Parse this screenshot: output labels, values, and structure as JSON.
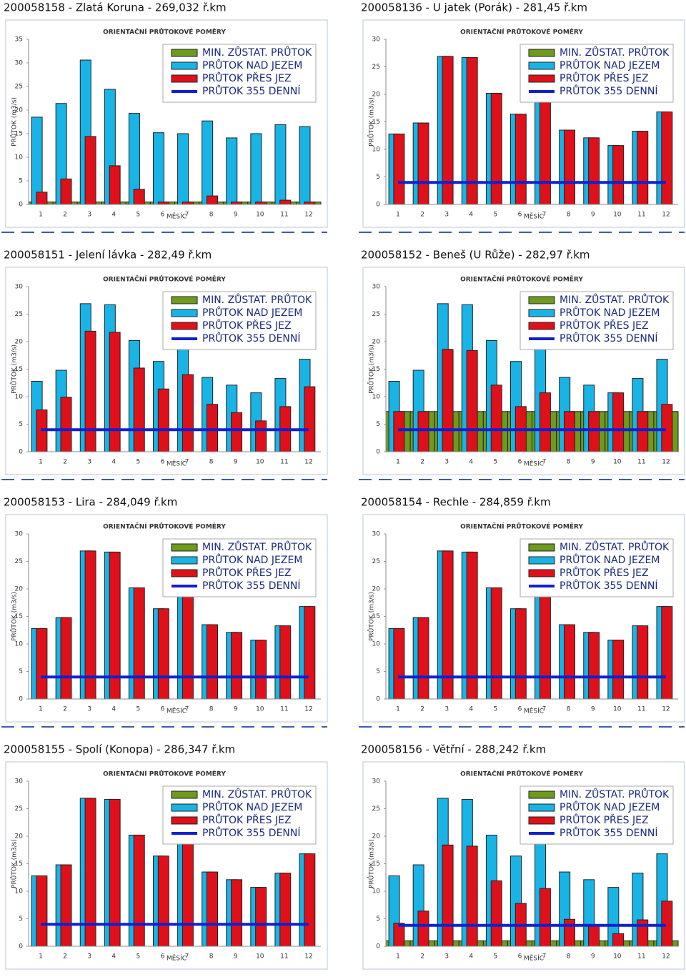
{
  "chart_data": [
    {
      "type": "bar",
      "title": "200058158 - Zlatá Koruna - 269,032 ř.km",
      "subtitle": "ORIENTAČNÍ PRŮTOKOVÉ POMĚRY",
      "y_label": "PRŮTOK (m3/s)",
      "x_label": "MĚSÍC",
      "categories": [
        1,
        2,
        3,
        4,
        5,
        6,
        7,
        8,
        9,
        10,
        11,
        12
      ],
      "ylim": [
        0,
        35
      ],
      "yticks": [
        0,
        5,
        10,
        15,
        20,
        25,
        30,
        35
      ],
      "series": [
        {
          "name": "MIN. ZŮSTAT. PRŮTOK",
          "color": "#6e9a1e",
          "values": [
            0.5,
            0.5,
            0.5,
            0.5,
            0.5,
            0.5,
            0.5,
            0.5,
            0.5,
            0.5,
            0.5,
            0.5
          ]
        },
        {
          "name": "PRŮTOK NAD JEZEM",
          "color": "#19b4e6",
          "values": [
            18.5,
            21.4,
            30.6,
            24.4,
            19.3,
            15.2,
            15.0,
            17.7,
            14.1,
            15.0,
            16.9,
            16.5
          ]
        },
        {
          "name": "PRŮTOK PŘES JEZ",
          "color": "#e0101a",
          "values": [
            2.6,
            5.4,
            14.4,
            8.2,
            3.2,
            0.5,
            0.5,
            1.8,
            0.5,
            0.5,
            0.9,
            0.5
          ]
        },
        {
          "name": "PRŮTOK 355 DENNÍ",
          "color": "#1020d0",
          "type": "line",
          "values": [
            null,
            null,
            null,
            null,
            null,
            null,
            null,
            null,
            null,
            null,
            null,
            null
          ]
        }
      ]
    },
    {
      "type": "bar",
      "title": "200058136 - U jatek (Porák) - 281,45 ř.km",
      "subtitle": "ORIENTAČNÍ PRŮTOKOVÉ POMĚRY",
      "y_label": "PRŮTOK (m3/s)",
      "x_label": "MĚSÍC",
      "categories": [
        1,
        2,
        3,
        4,
        5,
        6,
        7,
        8,
        9,
        10,
        11,
        12
      ],
      "ylim": [
        0,
        30
      ],
      "yticks": [
        0,
        5,
        10,
        15,
        20,
        25,
        30
      ],
      "series": [
        {
          "name": "MIN. ZŮSTAT. PRŮTOK",
          "color": "#6e9a1e",
          "values": [
            null,
            null,
            null,
            null,
            null,
            null,
            null,
            null,
            null,
            null,
            null,
            null
          ]
        },
        {
          "name": "PRŮTOK NAD JEZEM",
          "color": "#19b4e6",
          "values": [
            12.8,
            14.8,
            26.9,
            26.7,
            20.2,
            16.4,
            21.0,
            13.5,
            12.1,
            10.7,
            13.3,
            16.8
          ]
        },
        {
          "name": "PRŮTOK PŘES JEZ",
          "color": "#e0101a",
          "values": [
            12.8,
            14.8,
            26.9,
            26.7,
            20.2,
            16.4,
            21.0,
            13.5,
            12.1,
            10.7,
            13.3,
            16.8
          ]
        },
        {
          "name": "PRŮTOK 355 DENNÍ",
          "color": "#1020d0",
          "type": "line",
          "values": [
            4,
            4,
            4,
            4,
            4,
            4,
            4,
            4,
            4,
            4,
            4,
            4
          ]
        }
      ]
    },
    {
      "type": "bar",
      "title": "200058151 - Jelení lávka - 282,49 ř.km",
      "subtitle": "ORIENTAČNÍ PRŮTOKOVÉ POMĚRY",
      "y_label": "PRŮTOK (m3/s)",
      "x_label": "MĚSÍC",
      "categories": [
        1,
        2,
        3,
        4,
        5,
        6,
        7,
        8,
        9,
        10,
        11,
        12
      ],
      "ylim": [
        0,
        30
      ],
      "yticks": [
        0,
        5,
        10,
        15,
        20,
        25,
        30
      ],
      "series": [
        {
          "name": "MIN. ZŮSTAT. PRŮTOK",
          "color": "#6e9a1e",
          "values": [
            null,
            null,
            null,
            null,
            null,
            null,
            null,
            null,
            null,
            null,
            null,
            null
          ]
        },
        {
          "name": "PRŮTOK NAD JEZEM",
          "color": "#19b4e6",
          "values": [
            12.8,
            14.8,
            26.9,
            26.7,
            20.2,
            16.4,
            21.0,
            13.5,
            12.1,
            10.7,
            13.3,
            16.8
          ]
        },
        {
          "name": "PRŮTOK PŘES JEZ",
          "color": "#e0101a",
          "values": [
            7.6,
            9.9,
            21.9,
            21.7,
            15.2,
            11.4,
            14.0,
            8.6,
            7.1,
            5.6,
            8.2,
            11.8
          ]
        },
        {
          "name": "PRŮTOK 355 DENNÍ",
          "color": "#1020d0",
          "type": "line",
          "values": [
            4,
            4,
            4,
            4,
            4,
            4,
            4,
            4,
            4,
            4,
            4,
            4
          ]
        }
      ]
    },
    {
      "type": "bar",
      "title": "200058152 - Beneš (U Růže) - 282,97 ř.km",
      "subtitle": "ORIENTAČNÍ PRŮTOKOVÉ POMĚRY",
      "y_label": "PRŮTOK (m3/s)",
      "x_label": "MĚSÍC",
      "categories": [
        1,
        2,
        3,
        4,
        5,
        6,
        7,
        8,
        9,
        10,
        11,
        12
      ],
      "ylim": [
        0,
        30
      ],
      "yticks": [
        0,
        5,
        10,
        15,
        20,
        25,
        30
      ],
      "series": [
        {
          "name": "MIN. ZŮSTAT. PRŮTOK",
          "color": "#6e9a1e",
          "values": [
            7.3,
            7.3,
            7.3,
            7.3,
            7.3,
            7.3,
            7.3,
            7.3,
            7.3,
            7.3,
            7.3,
            7.3
          ]
        },
        {
          "name": "PRŮTOK NAD JEZEM",
          "color": "#19b4e6",
          "values": [
            12.8,
            14.8,
            26.9,
            26.7,
            20.2,
            16.4,
            21.0,
            13.5,
            12.1,
            10.7,
            13.3,
            16.8
          ]
        },
        {
          "name": "PRŮTOK PŘES JEZ",
          "color": "#e0101a",
          "values": [
            7.3,
            7.3,
            18.6,
            18.4,
            12.1,
            8.2,
            10.7,
            7.3,
            7.3,
            10.7,
            7.3,
            8.6
          ]
        },
        {
          "name": "PRŮTOK 355 DENNÍ",
          "color": "#1020d0",
          "type": "line",
          "values": [
            4,
            4,
            4,
            4,
            4,
            4,
            4,
            4,
            4,
            4,
            4,
            4
          ]
        }
      ]
    },
    {
      "type": "bar",
      "title": "200058153 - Lira - 284,049 ř.km",
      "subtitle": "ORIENTAČNÍ PRŮTOKOVÉ POMĚRY",
      "y_label": "PRŮTOK (m3/s)",
      "x_label": "MĚSÍC",
      "categories": [
        1,
        2,
        3,
        4,
        5,
        6,
        7,
        8,
        9,
        10,
        11,
        12
      ],
      "ylim": [
        0,
        30
      ],
      "yticks": [
        0,
        5,
        10,
        15,
        20,
        25,
        30
      ],
      "series": [
        {
          "name": "MIN. ZŮSTAT. PRŮTOK",
          "color": "#6e9a1e",
          "values": [
            null,
            null,
            null,
            null,
            null,
            null,
            null,
            null,
            null,
            null,
            null,
            null
          ]
        },
        {
          "name": "PRŮTOK NAD JEZEM",
          "color": "#19b4e6",
          "values": [
            12.8,
            14.8,
            26.9,
            26.7,
            20.2,
            16.4,
            21.0,
            13.5,
            12.1,
            10.7,
            13.3,
            16.8
          ]
        },
        {
          "name": "PRŮTOK PŘES JEZ",
          "color": "#e0101a",
          "values": [
            12.8,
            14.8,
            26.9,
            26.7,
            20.2,
            16.4,
            21.0,
            13.5,
            12.1,
            10.7,
            13.3,
            16.8
          ]
        },
        {
          "name": "PRŮTOK 355 DENNÍ",
          "color": "#1020d0",
          "type": "line",
          "values": [
            4,
            4,
            4,
            4,
            4,
            4,
            4,
            4,
            4,
            4,
            4,
            4
          ]
        }
      ]
    },
    {
      "type": "bar",
      "title": "200058154 - Rechle - 284,859 ř.km",
      "subtitle": "ORIENTAČNÍ PRŮTOKOVÉ POMĚRY",
      "y_label": "PRŮTOK (m3/s)",
      "x_label": "MĚSÍC",
      "categories": [
        1,
        2,
        3,
        4,
        5,
        6,
        7,
        8,
        9,
        10,
        11,
        12
      ],
      "ylim": [
        0,
        30
      ],
      "yticks": [
        0,
        5,
        10,
        15,
        20,
        25,
        30
      ],
      "series": [
        {
          "name": "MIN. ZŮSTAT. PRŮTOK",
          "color": "#6e9a1e",
          "values": [
            null,
            null,
            null,
            null,
            null,
            null,
            null,
            null,
            null,
            null,
            null,
            null
          ]
        },
        {
          "name": "PRŮTOK NAD JEZEM",
          "color": "#19b4e6",
          "values": [
            12.8,
            14.8,
            26.9,
            26.7,
            20.2,
            16.4,
            21.0,
            13.5,
            12.1,
            10.7,
            13.3,
            16.8
          ]
        },
        {
          "name": "PRŮTOK PŘES JEZ",
          "color": "#e0101a",
          "values": [
            12.8,
            14.8,
            26.9,
            26.7,
            20.2,
            16.4,
            21.0,
            13.5,
            12.1,
            10.7,
            13.3,
            16.8
          ]
        },
        {
          "name": "PRŮTOK 355 DENNÍ",
          "color": "#1020d0",
          "type": "line",
          "values": [
            4,
            4,
            4,
            4,
            4,
            4,
            4,
            4,
            4,
            4,
            4,
            4
          ]
        }
      ]
    },
    {
      "type": "bar",
      "title": "200058155 - Spolí (Konopa) - 286,347 ř.km",
      "subtitle": "ORIENTAČNÍ PRŮTOKOVÉ POMĚRY",
      "y_label": "PRŮTOK (m3/s)",
      "x_label": "MĚSÍC",
      "categories": [
        1,
        2,
        3,
        4,
        5,
        6,
        7,
        8,
        9,
        10,
        11,
        12
      ],
      "ylim": [
        0,
        30
      ],
      "yticks": [
        0,
        5,
        10,
        15,
        20,
        25,
        30
      ],
      "series": [
        {
          "name": "MIN. ZŮSTAT. PRŮTOK",
          "color": "#6e9a1e",
          "values": [
            null,
            null,
            null,
            null,
            null,
            null,
            null,
            null,
            null,
            null,
            null,
            null
          ]
        },
        {
          "name": "PRŮTOK NAD JEZEM",
          "color": "#19b4e6",
          "values": [
            12.8,
            14.8,
            26.9,
            26.7,
            20.2,
            16.4,
            21.0,
            13.5,
            12.1,
            10.7,
            13.3,
            16.8
          ]
        },
        {
          "name": "PRŮTOK PŘES JEZ",
          "color": "#e0101a",
          "values": [
            12.8,
            14.8,
            26.9,
            26.7,
            20.2,
            16.4,
            21.0,
            13.5,
            12.1,
            10.7,
            13.3,
            16.8
          ]
        },
        {
          "name": "PRŮTOK 355 DENNÍ",
          "color": "#1020d0",
          "type": "line",
          "values": [
            4,
            4,
            4,
            4,
            4,
            4,
            4,
            4,
            4,
            4,
            4,
            4
          ]
        }
      ]
    },
    {
      "type": "bar",
      "title": "200058156 - Větřní - 288,242 ř.km",
      "subtitle": "ORIENTAČNÍ PRŮTOKOVÉ POMĚRY",
      "y_label": "PRŮTOK (m3/s)",
      "x_label": "MĚSÍC",
      "categories": [
        1,
        2,
        3,
        4,
        5,
        6,
        7,
        8,
        9,
        10,
        11,
        12
      ],
      "ylim": [
        0,
        30
      ],
      "yticks": [
        0,
        5,
        10,
        15,
        20,
        25,
        30
      ],
      "series": [
        {
          "name": "MIN. ZŮSTAT. PRŮTOK",
          "color": "#6e9a1e",
          "values": [
            1.0,
            1.0,
            1.0,
            1.0,
            1.0,
            1.0,
            1.0,
            1.0,
            1.0,
            1.0,
            1.0,
            1.0
          ]
        },
        {
          "name": "PRŮTOK NAD JEZEM",
          "color": "#19b4e6",
          "values": [
            12.8,
            14.8,
            26.9,
            26.7,
            20.2,
            16.4,
            21.0,
            13.5,
            12.1,
            10.7,
            13.3,
            16.8
          ]
        },
        {
          "name": "PRŮTOK PŘES JEZ",
          "color": "#e0101a",
          "values": [
            4.2,
            6.4,
            18.4,
            18.2,
            11.9,
            7.8,
            10.5,
            4.9,
            3.7,
            2.3,
            4.8,
            8.2
          ]
        },
        {
          "name": "PRŮTOK 355 DENNÍ",
          "color": "#1020d0",
          "type": "line",
          "values": [
            3.8,
            3.8,
            3.8,
            3.8,
            3.8,
            3.8,
            3.8,
            3.8,
            3.8,
            3.8,
            3.8,
            3.8
          ]
        }
      ]
    }
  ]
}
